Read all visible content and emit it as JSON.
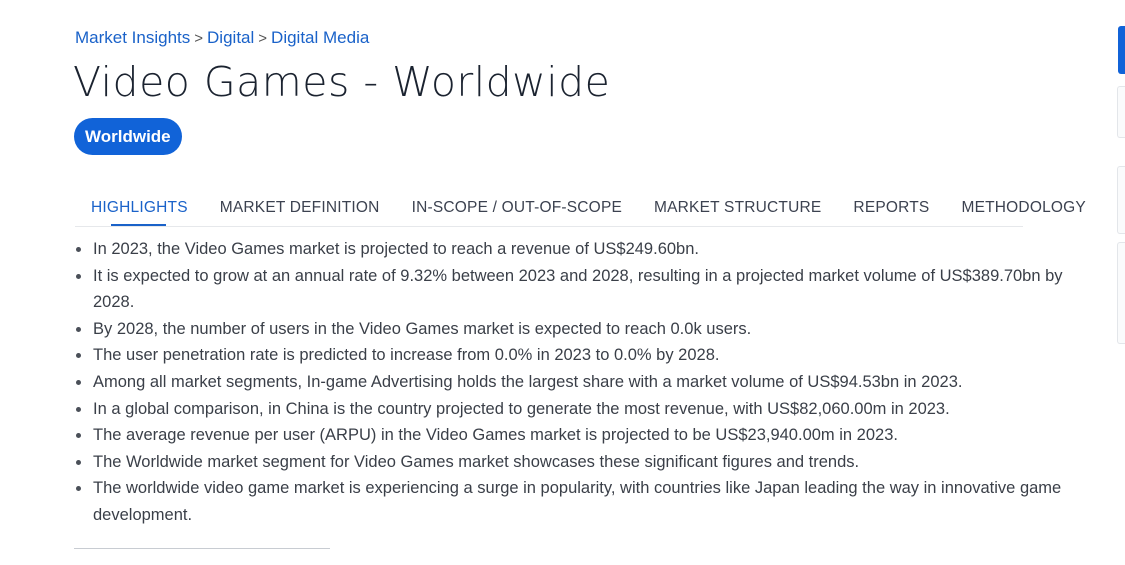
{
  "breadcrumb": {
    "items": [
      "Market Insights",
      "Digital",
      "Digital Media"
    ],
    "separator": ">"
  },
  "page_title": "Video Games - Worldwide",
  "region_pill": "Worldwide",
  "tabs": [
    {
      "label": "HIGHLIGHTS",
      "active": true
    },
    {
      "label": "MARKET DEFINITION",
      "active": false
    },
    {
      "label": "IN-SCOPE / OUT-OF-SCOPE",
      "active": false
    },
    {
      "label": "MARKET STRUCTURE",
      "active": false
    },
    {
      "label": "REPORTS",
      "active": false
    },
    {
      "label": "METHODOLOGY",
      "active": false
    }
  ],
  "highlights": [
    "In 2023, the Video Games market is projected to reach a revenue of US$249.60bn.",
    "It is expected to grow at an annual rate of 9.32% between 2023 and 2028, resulting in a projected market volume of US$389.70bn by 2028.",
    "By 2028, the number of users in the Video Games market is expected to reach 0.0k users.",
    "The user penetration rate is predicted to increase from 0.0% in 2023 to 0.0% by 2028.",
    "Among all market segments, In-game Advertising holds the largest share with a market volume of US$94.53bn in 2023.",
    "In a global comparison, in China is the country projected to generate the most revenue, with US$82,060.00m in 2023.",
    "The average revenue per user (ARPU) in the Video Games market is projected to be US$23,940.00m in 2023.",
    "The Worldwide market segment for Video Games market showcases these significant figures and trends.",
    "The worldwide video game market is experiencing a surge in popularity, with countries like Japan leading the way in innovative game development."
  ],
  "colors": {
    "accent": "#1163d8",
    "link": "#1a62c9",
    "title": "#1b2330",
    "body_text": "#3a3f48"
  }
}
